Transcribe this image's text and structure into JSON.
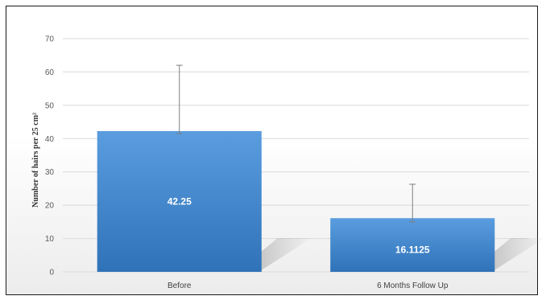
{
  "chart_data": {
    "type": "bar",
    "categories": [
      "Before",
      "6 Months Follow Up"
    ],
    "values": [
      42.25,
      16.1125
    ],
    "data_labels": [
      "42.25",
      "16.1125"
    ],
    "error_bars": [
      [
        41.5,
        62
      ],
      [
        15,
        26.3
      ]
    ],
    "ylabel": "Number of hairs per 25 cm²",
    "ylim": [
      0,
      70
    ],
    "yticks": [
      0,
      10,
      20,
      30,
      40,
      50,
      60,
      70
    ],
    "grid": true,
    "legend": "none",
    "colors": {
      "bar": "#3d87d1",
      "bar_light": "#5a9ddf",
      "bar_dark": "#2f72b8",
      "grid": "#d9d9d9",
      "error": "#7f7f7f"
    }
  }
}
